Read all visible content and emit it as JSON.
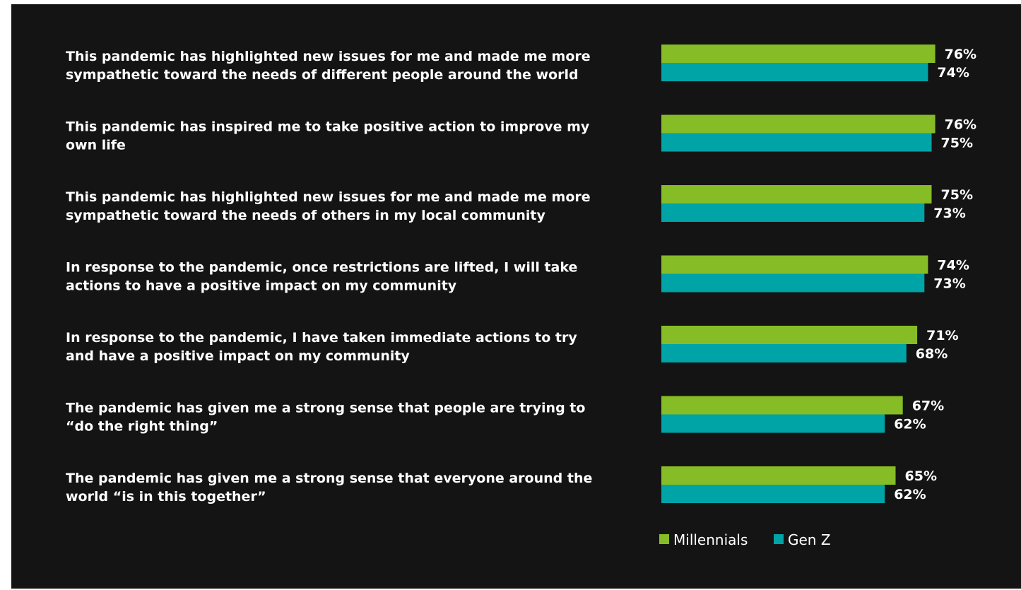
{
  "chart_data": {
    "type": "bar",
    "orientation": "horizontal",
    "categories": [
      [
        "This pandemic has highlighted new issues for me and made me more",
        "sympathetic toward the needs of different people around the world"
      ],
      [
        "This pandemic has inspired me to take positive action to improve my",
        "own life"
      ],
      [
        "This pandemic has highlighted new issues for me and made me more",
        "sympathetic toward the needs of others in my local community"
      ],
      [
        "In response to the pandemic, once restrictions are lifted, I will take",
        "actions to have a positive impact on my community"
      ],
      [
        "In response to the pandemic, I have taken immediate actions to try",
        "and have a positive impact on my community"
      ],
      [
        "The pandemic has given me a strong sense that people are trying to",
        "“do the right thing”"
      ],
      [
        "The pandemic has given me a strong sense that everyone around the",
        "world “is in this together”"
      ]
    ],
    "series": [
      {
        "name": "Millennials",
        "color": "#86bc25",
        "values": [
          76,
          76,
          75,
          74,
          71,
          67,
          65
        ]
      },
      {
        "name": "Gen Z",
        "color": "#00a3a6",
        "values": [
          74,
          75,
          73,
          73,
          68,
          62,
          62
        ]
      }
    ],
    "value_suffix": "%",
    "legend_position": "bottom-right",
    "grid": false
  }
}
